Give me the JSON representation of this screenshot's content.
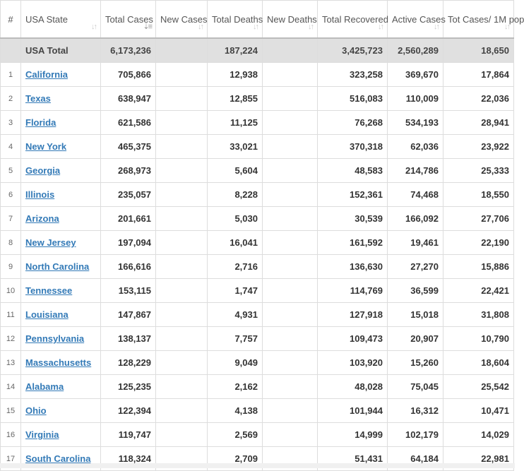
{
  "headers": [
    {
      "label": "#"
    },
    {
      "label": "USA State",
      "sortable": true
    },
    {
      "label": "Total Cases",
      "sortable": true,
      "sorted": "desc"
    },
    {
      "label": "New Cases",
      "sortable": true
    },
    {
      "label": "Total Deaths",
      "sortable": true
    },
    {
      "label": "New Deaths",
      "sortable": true
    },
    {
      "label": "Total Recovered",
      "sortable": true
    },
    {
      "label": "Active Cases",
      "sortable": true
    },
    {
      "label": "Tot Cases/ 1M pop",
      "sortable": true
    }
  ],
  "total": {
    "state": "USA Total",
    "total_cases": "6,173,236",
    "new_cases": "",
    "total_deaths": "187,224",
    "new_deaths": "",
    "recovered": "3,425,723",
    "active": "2,560,289",
    "per_million": "18,650"
  },
  "rows": [
    [
      "1",
      "California",
      "705,866",
      "",
      "12,938",
      "",
      "323,258",
      "369,670",
      "17,864"
    ],
    [
      "2",
      "Texas",
      "638,947",
      "",
      "12,855",
      "",
      "516,083",
      "110,009",
      "22,036"
    ],
    [
      "3",
      "Florida",
      "621,586",
      "",
      "11,125",
      "",
      "76,268",
      "534,193",
      "28,941"
    ],
    [
      "4",
      "New York",
      "465,375",
      "",
      "33,021",
      "",
      "370,318",
      "62,036",
      "23,922"
    ],
    [
      "5",
      "Georgia",
      "268,973",
      "",
      "5,604",
      "",
      "48,583",
      "214,786",
      "25,333"
    ],
    [
      "6",
      "Illinois",
      "235,057",
      "",
      "8,228",
      "",
      "152,361",
      "74,468",
      "18,550"
    ],
    [
      "7",
      "Arizona",
      "201,661",
      "",
      "5,030",
      "",
      "30,539",
      "166,092",
      "27,706"
    ],
    [
      "8",
      "New Jersey",
      "197,094",
      "",
      "16,041",
      "",
      "161,592",
      "19,461",
      "22,190"
    ],
    [
      "9",
      "North Carolina",
      "166,616",
      "",
      "2,716",
      "",
      "136,630",
      "27,270",
      "15,886"
    ],
    [
      "10",
      "Tennessee",
      "153,115",
      "",
      "1,747",
      "",
      "114,769",
      "36,599",
      "22,421"
    ],
    [
      "11",
      "Louisiana",
      "147,867",
      "",
      "4,931",
      "",
      "127,918",
      "15,018",
      "31,808"
    ],
    [
      "12",
      "Pennsylvania",
      "138,137",
      "",
      "7,757",
      "",
      "109,473",
      "20,907",
      "10,790"
    ],
    [
      "13",
      "Massachusetts",
      "128,229",
      "",
      "9,049",
      "",
      "103,920",
      "15,260",
      "18,604"
    ],
    [
      "14",
      "Alabama",
      "125,235",
      "",
      "2,162",
      "",
      "48,028",
      "75,045",
      "25,542"
    ],
    [
      "15",
      "Ohio",
      "122,394",
      "",
      "4,138",
      "",
      "101,944",
      "16,312",
      "10,471"
    ],
    [
      "16",
      "Virginia",
      "119,747",
      "",
      "2,569",
      "",
      "14,999",
      "102,179",
      "14,029"
    ],
    [
      "17",
      "South Carolina",
      "118,324",
      "",
      "2,709",
      "",
      "51,431",
      "64,184",
      "22,981"
    ]
  ],
  "colors": {
    "link": "#337ab7",
    "total_bg": "#e0e0e0"
  }
}
